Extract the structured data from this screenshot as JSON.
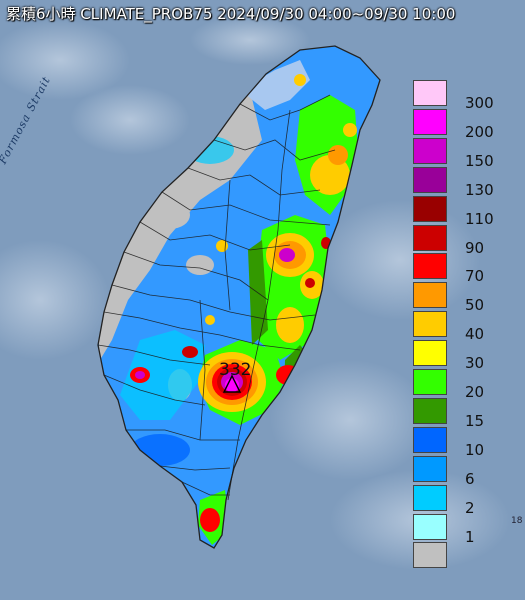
{
  "title": "累積6小時 CLIMATE_PROB75 2024/09/30 04:00~09/30 10:00",
  "strait_label": "Formosa Strait",
  "max_value_label": "332",
  "legend": [
    {
      "label": "300",
      "color": "#ffc8f8"
    },
    {
      "label": "200",
      "color": "#ff00ff"
    },
    {
      "label": "150",
      "color": "#cc00cc"
    },
    {
      "label": "130",
      "color": "#990099"
    },
    {
      "label": "110",
      "color": "#990000"
    },
    {
      "label": "90",
      "color": "#cc0000"
    },
    {
      "label": "70",
      "color": "#ff0000"
    },
    {
      "label": "50",
      "color": "#ff9900"
    },
    {
      "label": "40",
      "color": "#ffcc00"
    },
    {
      "label": "30",
      "color": "#ffff00"
    },
    {
      "label": "20",
      "color": "#33ff00"
    },
    {
      "label": "15",
      "color": "#339900"
    },
    {
      "label": "10",
      "color": "#0066ff"
    },
    {
      "label": "6",
      "color": "#0099ff"
    },
    {
      "label": "2",
      "color": "#00ccff"
    },
    {
      "label": "1",
      "color": "#99ffff"
    },
    {
      "label": "",
      "color": "#c0c0c0"
    }
  ],
  "colors": {
    "sea": "#7f9cbd",
    "no_rain": "#c0c0c0"
  }
}
